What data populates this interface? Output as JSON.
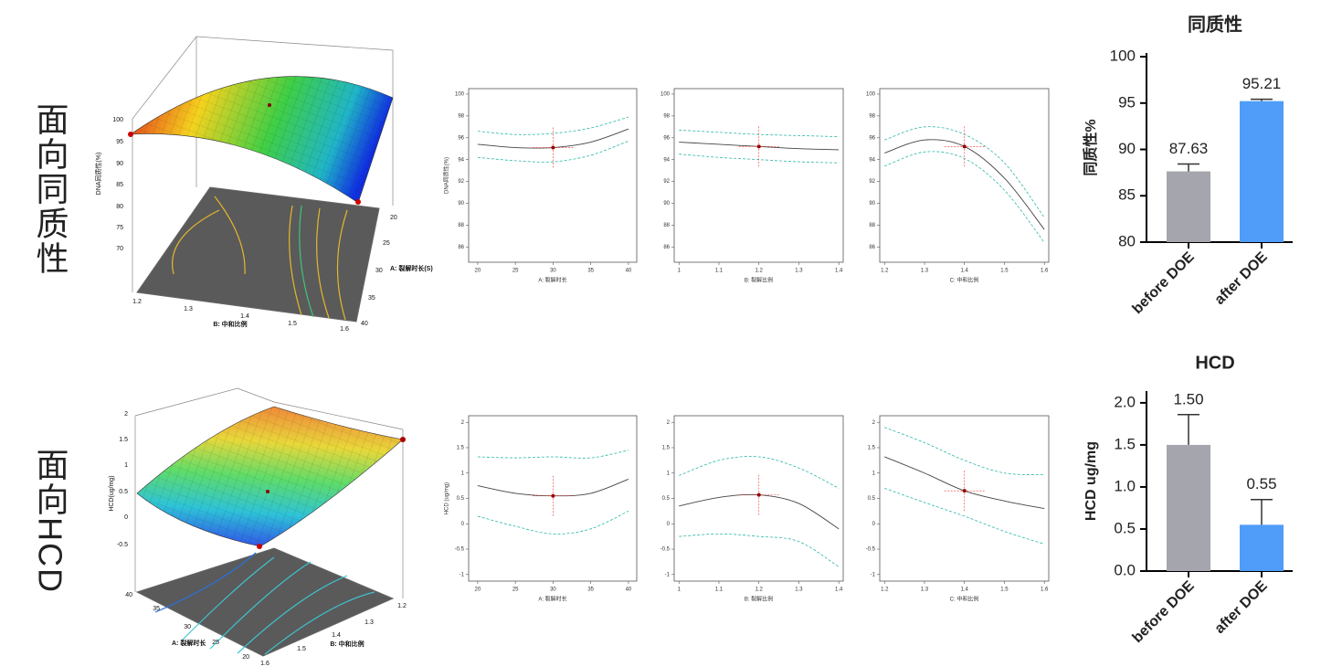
{
  "row_labels": [
    "面向同质性",
    "面向HCD"
  ],
  "surfaces": [
    {
      "z_label": "DNA同质性(%)",
      "zticks": [
        100,
        95,
        90,
        85,
        80,
        75,
        70
      ],
      "a_label": "A: 裂解时长(S)",
      "a_ticks": [
        20,
        25,
        30,
        35,
        40
      ],
      "b_label": "B: 中和比例",
      "b_ticks": [
        1.2,
        1.3,
        1.4,
        1.5,
        1.6
      ]
    },
    {
      "z_label": "HCD(ug/mg)",
      "zticks": [
        2,
        1.5,
        1,
        0.5,
        0,
        -0.5
      ],
      "a_label": "A: 裂解时长",
      "a_ticks": [
        40,
        35,
        30,
        25,
        20
      ],
      "b_label": "B: 中和比例",
      "b_ticks": [
        1.2,
        1.3,
        1.4,
        1.5,
        1.6
      ]
    }
  ],
  "chart_data": [
    {
      "type": "line",
      "y_label": "DNA同质性(%)",
      "x_label": "A: 裂解时长",
      "x": [
        20,
        25,
        30,
        35,
        40
      ],
      "xlim": [
        18.8,
        41.1
      ],
      "xticks": [
        20,
        25,
        30,
        35,
        40
      ],
      "ylim": [
        84.6,
        100.5
      ],
      "yticks": [
        86,
        88,
        90,
        92,
        94,
        96,
        98,
        100
      ],
      "series": [
        {
          "color": "#444444",
          "values": [
            95.4,
            95.1,
            95.1,
            95.6,
            96.8
          ]
        },
        {
          "color": "#2ab7a9",
          "dashed": true,
          "values": [
            96.6,
            96.3,
            96.4,
            96.9,
            97.9
          ]
        },
        {
          "color": "#2ab7a9",
          "dashed": true,
          "values": [
            94.2,
            93.9,
            93.8,
            94.4,
            95.7
          ]
        }
      ],
      "marker": {
        "x": 30,
        "y": 95.1
      }
    },
    {
      "type": "line",
      "x_label": "B: 裂解比例",
      "x": [
        1,
        1.1,
        1.2,
        1.3,
        1.4
      ],
      "xlim": [
        0.988,
        1.411
      ],
      "xticks": [
        1,
        1.1,
        1.2,
        1.3,
        1.4
      ],
      "ylim": [
        84.6,
        100.5
      ],
      "yticks": [
        86,
        88,
        90,
        92,
        94,
        96,
        98,
        100
      ],
      "series": [
        {
          "color": "#444444",
          "values": [
            95.6,
            95.4,
            95.2,
            95.0,
            94.9
          ]
        },
        {
          "color": "#2ab7a9",
          "dashed": true,
          "values": [
            96.7,
            96.5,
            96.3,
            96.2,
            96.1
          ]
        },
        {
          "color": "#2ab7a9",
          "dashed": true,
          "values": [
            94.5,
            94.2,
            94.0,
            93.8,
            93.7
          ]
        }
      ],
      "marker": {
        "x": 1.2,
        "y": 95.2
      }
    },
    {
      "type": "line",
      "x_label": "C: 中和比例",
      "x": [
        1.2,
        1.3,
        1.4,
        1.5,
        1.6
      ],
      "xlim": [
        1.188,
        1.611
      ],
      "xticks": [
        1.2,
        1.3,
        1.4,
        1.5,
        1.6
      ],
      "ylim": [
        84.6,
        100.5
      ],
      "yticks": [
        86,
        88,
        90,
        92,
        94,
        96,
        98,
        100
      ],
      "series": [
        {
          "color": "#444444",
          "values": [
            94.6,
            95.8,
            95.2,
            92.3,
            87.6
          ]
        },
        {
          "color": "#2ab7a9",
          "dashed": true,
          "values": [
            95.8,
            97.0,
            96.3,
            93.7,
            88.7
          ]
        },
        {
          "color": "#2ab7a9",
          "dashed": true,
          "values": [
            93.4,
            94.7,
            94.1,
            91.2,
            86.4
          ]
        }
      ],
      "marker": {
        "x": 1.4,
        "y": 95.2
      }
    },
    {
      "type": "line",
      "y_label": "HCD (ug/mg)",
      "x_label": "A: 裂解时长",
      "x": [
        20,
        25,
        30,
        35,
        40
      ],
      "xlim": [
        18.8,
        41.1
      ],
      "xticks": [
        20,
        25,
        30,
        35,
        40
      ],
      "ylim": [
        -1.13,
        2.13
      ],
      "yticks": [
        -1,
        -0.5,
        0,
        0.5,
        1,
        1.5,
        2
      ],
      "series": [
        {
          "color": "#444444",
          "values": [
            0.75,
            0.6,
            0.55,
            0.6,
            0.88
          ]
        },
        {
          "color": "#2ab7a9",
          "dashed": true,
          "values": [
            1.32,
            1.3,
            1.32,
            1.3,
            1.45
          ]
        },
        {
          "color": "#2ab7a9",
          "dashed": true,
          "values": [
            0.15,
            -0.05,
            -0.2,
            -0.1,
            0.25
          ]
        }
      ],
      "marker": {
        "x": 30,
        "y": 0.55
      }
    },
    {
      "type": "line",
      "x_label": "B: 裂解比例",
      "x": [
        1,
        1.1,
        1.2,
        1.3,
        1.4
      ],
      "xlim": [
        0.988,
        1.411
      ],
      "xticks": [
        1,
        1.1,
        1.2,
        1.3,
        1.4
      ],
      "ylim": [
        -1.13,
        2.13
      ],
      "yticks": [
        -1,
        -0.5,
        0,
        0.5,
        1,
        1.5,
        2
      ],
      "series": [
        {
          "color": "#444444",
          "values": [
            0.35,
            0.52,
            0.57,
            0.4,
            -0.1
          ]
        },
        {
          "color": "#2ab7a9",
          "dashed": true,
          "values": [
            0.95,
            1.25,
            1.32,
            1.1,
            0.7
          ]
        },
        {
          "color": "#2ab7a9",
          "dashed": true,
          "values": [
            -0.25,
            -0.2,
            -0.25,
            -0.35,
            -0.85
          ]
        }
      ],
      "marker": {
        "x": 1.2,
        "y": 0.57
      }
    },
    {
      "type": "line",
      "x_label": "C: 中和比例",
      "x": [
        1.2,
        1.3,
        1.4,
        1.5,
        1.6
      ],
      "xlim": [
        1.188,
        1.611
      ],
      "xticks": [
        1.2,
        1.3,
        1.4,
        1.5,
        1.6
      ],
      "ylim": [
        -1.13,
        2.13
      ],
      "yticks": [
        -1,
        -0.5,
        0,
        0.5,
        1,
        1.5,
        2
      ],
      "series": [
        {
          "color": "#444444",
          "values": [
            1.32,
            1.0,
            0.65,
            0.45,
            0.3
          ]
        },
        {
          "color": "#2ab7a9",
          "dashed": true,
          "values": [
            1.9,
            1.6,
            1.25,
            1.0,
            0.97
          ]
        },
        {
          "color": "#2ab7a9",
          "dashed": true,
          "values": [
            0.7,
            0.42,
            0.15,
            -0.15,
            -0.4
          ]
        }
      ],
      "marker": {
        "x": 1.4,
        "y": 0.65
      }
    },
    {
      "type": "bar",
      "title": "同质性",
      "y_label": "同质性%",
      "categories": [
        "before DOE",
        "after DOE"
      ],
      "values": [
        87.63,
        95.21
      ],
      "errors": [
        0.8,
        0.2
      ],
      "colors": [
        "#a5a5ad",
        "#4f9cf9"
      ],
      "ylim": [
        80,
        100.4
      ],
      "yticks": [
        80,
        85,
        90,
        95,
        100
      ]
    },
    {
      "type": "bar",
      "title": "HCD",
      "y_label": "HCD ug/mg",
      "categories": [
        "before DOE",
        "after DOE"
      ],
      "values": [
        1.5,
        0.55
      ],
      "value_labels": [
        "1.50",
        "0.55"
      ],
      "errors": [
        0.36,
        0.3
      ],
      "colors": [
        "#a5a5ad",
        "#4f9cf9"
      ],
      "ylim": [
        0,
        2.14
      ],
      "yticks": [
        {
          "value": 0,
          "label": "0.0"
        },
        {
          "value": 0.5,
          "label": "0.5"
        },
        {
          "value": 1,
          "label": "1.0"
        },
        {
          "value": 1.5,
          "label": "1.5"
        },
        {
          "value": 2,
          "label": "2.0"
        }
      ]
    }
  ]
}
